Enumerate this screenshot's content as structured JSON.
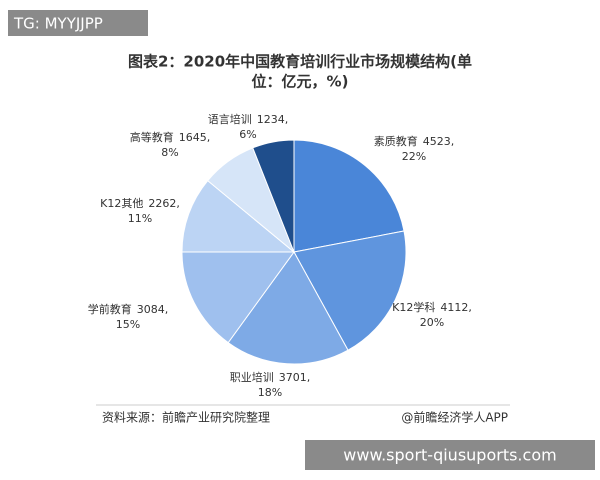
{
  "watermark": "TG: MYYJJPP",
  "chart_data": {
    "type": "pie",
    "title": [
      "图表2：2020年中国教育培训行业市场规模结构(单",
      "位：亿元，%)"
    ],
    "categories": [
      "素质教育",
      "K12学科",
      "职业培训",
      "学前教育",
      "K12其他",
      "高等教育",
      "语言培训"
    ],
    "values": [
      4523,
      4112,
      3701,
      3084,
      2262,
      1645,
      1234
    ],
    "value_labels": [
      "4523,",
      "4112,",
      "3701,",
      "3084,",
      "2262,",
      "1645,",
      "1234,"
    ],
    "percent_labels": [
      "22%",
      "20%",
      "18%",
      "15%",
      "11%",
      "8%",
      "6%"
    ],
    "colors": [
      "#4a86d8",
      "#5f95de",
      "#7eaae6",
      "#9fc0ee",
      "#bcd4f4",
      "#d6e5f8",
      "#1f4e8c"
    ]
  },
  "footer": {
    "source": "资料来源：前瞻产业研究院整理",
    "brand": "@前瞻经济学人APP"
  },
  "url": "www.sport-qiusuports.com"
}
